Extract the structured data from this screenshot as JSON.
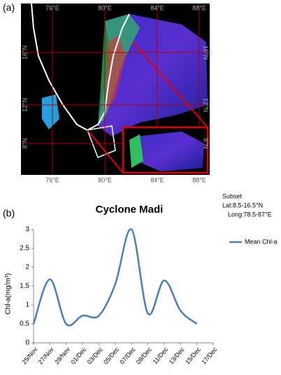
{
  "map": {
    "label": "(a)",
    "lon_labels": [
      "76°E",
      "80°E",
      "84°E",
      "88°E"
    ],
    "lat_labels": [
      "16°N",
      "12°N",
      "8°N"
    ]
  },
  "chart_data": {
    "type": "line",
    "panel_label": "(b)",
    "title": "Cyclone Madi",
    "y_label": "Chl-a(mg/m³)",
    "annotation": [
      "Subset",
      "Lat:8.5-16.5°N",
      "Long:78.5-87°E"
    ],
    "categories": [
      "25/Nov",
      "27/Nov",
      "29/Nov",
      "01/Dec",
      "03/Dec",
      "05/Dec",
      "07/Dec",
      "09/Dec",
      "11/Dec",
      "13/Dec",
      "15/Dec",
      "17/Dec"
    ],
    "series": [
      {
        "name": "Mean Chl-a",
        "color": "#4a7ebb",
        "values": [
          0.5,
          1.68,
          0.5,
          0.72,
          0.72,
          1.55,
          3.0,
          0.78,
          1.65,
          0.85,
          0.5,
          null
        ]
      }
    ],
    "ylim": [
      0,
      3
    ],
    "yticks": [
      0,
      0.5,
      1,
      1.5,
      2,
      2.5,
      3
    ],
    "grid": false,
    "legend": "right"
  }
}
